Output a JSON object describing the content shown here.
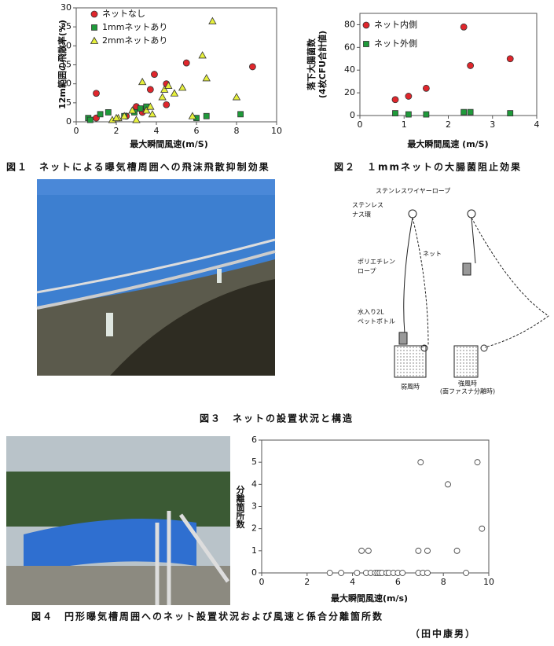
{
  "chart_data": [
    {
      "type": "scatter",
      "xlabel": "最大瞬間風速(m/S)",
      "ylabel": [
        "12m範囲の飛散率(%)"
      ],
      "xlim": [
        0,
        10
      ],
      "xticks": [
        0,
        2,
        4,
        6,
        8,
        10
      ],
      "ylim": [
        0,
        30
      ],
      "yticks": [
        0,
        5,
        10,
        15,
        20,
        25,
        30
      ],
      "series": [
        {
          "name": "ネットなし",
          "color": "#e0262c",
          "marker": "circle",
          "x": [
            1.0,
            2.5,
            3.0,
            3.3,
            3.7,
            3.9,
            4.5,
            4.5,
            5.5,
            8.8,
            1.0
          ],
          "values": [
            7.5,
            1.5,
            4,
            2.5,
            8.5,
            12.5,
            10,
            4.5,
            15.5,
            14.5,
            1
          ]
        },
        {
          "name": "1mmネットあり",
          "color": "#1f9a3a",
          "marker": "square",
          "x": [
            0.6,
            0.7,
            1.2,
            1.6,
            2.4,
            2.9,
            3.2,
            3.5,
            6.0,
            6.5,
            8.2
          ],
          "values": [
            1,
            0.5,
            2,
            2.5,
            1.5,
            2.5,
            3.5,
            4,
            1,
            1.5,
            2
          ]
        },
        {
          "name": "2mmネットあり",
          "color": "#e6f03c",
          "marker": "triangle",
          "x": [
            1.8,
            2.1,
            2.4,
            2.8,
            3.0,
            3.3,
            3.5,
            3.7,
            3.8,
            4.3,
            4.4,
            4.6,
            4.9,
            5.3,
            5.8,
            6.3,
            6.5,
            6.8,
            8.0,
            2.0
          ],
          "values": [
            0.5,
            1,
            1.5,
            3,
            0.5,
            10.5,
            3,
            4,
            2,
            6.5,
            8.5,
            9.5,
            7.5,
            9,
            1.5,
            17.5,
            11.5,
            26.5,
            6.5,
            1
          ]
        }
      ]
    },
    {
      "type": "scatter",
      "xlabel": "最大瞬間風速 (m/S)",
      "ylabel": [
        "落下大腸菌数",
        "(4枚CFU合計値)"
      ],
      "xlim": [
        0,
        4
      ],
      "xticks": [
        0,
        1,
        2,
        3,
        4
      ],
      "ylim": [
        0,
        90
      ],
      "yticks": [
        0,
        20,
        40,
        60,
        80
      ],
      "series": [
        {
          "name": "ネット内側",
          "color": "#e0262c",
          "marker": "circle",
          "x": [
            0.8,
            1.1,
            1.5,
            2.35,
            2.5,
            3.4
          ],
          "values": [
            14,
            17,
            24,
            78,
            44,
            50
          ]
        },
        {
          "name": "ネット外側",
          "color": "#1f9a3a",
          "marker": "square",
          "x": [
            0.8,
            1.1,
            1.5,
            2.35,
            2.5,
            3.4
          ],
          "values": [
            2,
            1,
            1,
            3,
            3,
            2
          ]
        }
      ]
    },
    {
      "type": "scatter",
      "xlabel": "最大瞬間風速(m/s)",
      "ylabel": [
        "分離箇所数"
      ],
      "xlim": [
        0,
        10
      ],
      "xticks": [
        0,
        2,
        4,
        6,
        8,
        10
      ],
      "ylim": [
        0,
        6
      ],
      "yticks": [
        0,
        1,
        2,
        3,
        4,
        5,
        6
      ],
      "series": [
        {
          "color": "#333333",
          "marker": "circle-open",
          "x": [
            3.0,
            3.5,
            4.2,
            4.6,
            4.8,
            5.0,
            5.1,
            5.2,
            5.3,
            5.5,
            5.6,
            5.8,
            6.0,
            6.2,
            6.9,
            7.1,
            7.3,
            9.0,
            4.4,
            4.7,
            6.9,
            7.3,
            8.6,
            9.7,
            8.2,
            7.0,
            9.5
          ],
          "values": [
            0,
            0,
            0,
            0,
            0,
            0,
            0,
            0,
            0,
            0,
            0,
            0,
            0,
            0,
            0,
            0,
            0,
            0,
            1,
            1,
            1,
            1,
            1,
            2,
            4,
            5,
            5
          ]
        }
      ]
    }
  ],
  "captions": [
    "図１　ネットによる曝気槽周囲への飛沫飛散抑制効果",
    "図２　１mmネットの大腸菌阻止効果",
    "図３　ネットの設置状況と構造",
    "図４　円形曝気槽周囲へのネット設置状況および風速と係合分離箇所数"
  ],
  "diagram": {
    "labels": [
      "ステンレスワイヤーロープ",
      "ステンレス",
      "ナス環",
      "ポリエチレン",
      "ロープ",
      "ネット",
      "水入り2L",
      "ペットボトル",
      "弱風時",
      "強風時",
      "(面ファスナ分離時)"
    ]
  },
  "author": "（田中康男）"
}
